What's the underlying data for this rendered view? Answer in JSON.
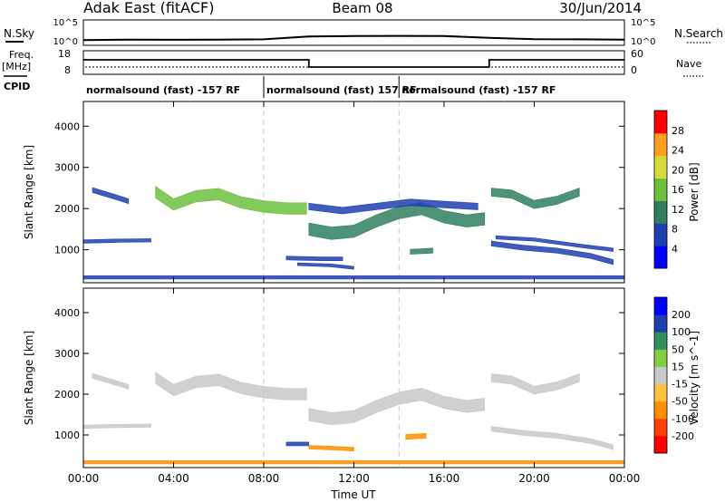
{
  "header": {
    "station": "Adak East (fitACF)",
    "beam": "Beam 08",
    "date": "30/Jun/2014"
  },
  "status_panel": {
    "nsky_label": "N.Sky",
    "nsky_ticks": [
      "10^5",
      "10^0"
    ],
    "nsearch_label": "N.Search",
    "nsearch_ticks": [
      "10^5",
      "10^0"
    ],
    "freq_label": "Freq.",
    "freq_unit": "[MHz]",
    "freq_ticks": [
      "18",
      "8"
    ],
    "nave_label": "Nave",
    "nave_ticks": [
      "60",
      "0"
    ],
    "cpid_label": "CPID",
    "freq_trace": [
      [
        0,
        14.5
      ],
      [
        10,
        14.5
      ],
      [
        10,
        10.5
      ],
      [
        18,
        10.5
      ],
      [
        18,
        14.5
      ],
      [
        24,
        14.5
      ]
    ],
    "nsky_trace": [
      [
        0,
        0.8
      ],
      [
        2,
        0.9
      ],
      [
        4,
        0.85
      ],
      [
        6,
        0.9
      ],
      [
        8,
        0.95
      ],
      [
        10,
        1.6
      ],
      [
        12,
        1.7
      ],
      [
        14,
        1.75
      ],
      [
        16,
        1.7
      ],
      [
        18,
        1.3
      ],
      [
        20,
        1.0
      ],
      [
        22,
        0.95
      ],
      [
        24,
        0.9
      ]
    ]
  },
  "cpid_segments": [
    {
      "start": 0,
      "end": 8,
      "label": "normalsound (fast) -157 RF"
    },
    {
      "start": 8,
      "end": 14,
      "label": "normalsound (fast) 157 RF"
    },
    {
      "start": 14,
      "end": 24,
      "label": "normalsound (fast) -157 RF"
    }
  ],
  "chart_data": [
    {
      "type": "heatmap",
      "panel": "power",
      "ylabel": "Slant Range [km]",
      "ylim": [
        200,
        4600
      ],
      "xlim": [
        0,
        24
      ],
      "yticks": [
        "1000",
        "2000",
        "3000",
        "4000"
      ],
      "colorbar_label": "Power [dB]",
      "colorbar_ticks": [
        "28",
        "24",
        "20",
        "16",
        "12",
        "8",
        "4"
      ],
      "colorbar_colors": [
        "#0000ff",
        "#1f3fb0",
        "#2f7f5f",
        "#6fbf3f",
        "#d8d83f",
        "#ff9f1f",
        "#ff0000"
      ],
      "bands": [
        {
          "name": "band-a",
          "points": [
            [
              0.4,
              2450
            ],
            [
              1.0,
              2350
            ],
            [
              1.6,
              2250
            ],
            [
              2.0,
              2180
            ]
          ],
          "width": 120,
          "value": 6
        },
        {
          "name": "band-b",
          "points": [
            [
              3.2,
              2400
            ],
            [
              4.0,
              2100
            ],
            [
              5.0,
              2300
            ],
            [
              6.0,
              2350
            ],
            [
              7.0,
              2150
            ],
            [
              8.0,
              2050
            ],
            [
              9.0,
              2000
            ],
            [
              9.9,
              2000
            ]
          ],
          "width": 280,
          "value": 14
        },
        {
          "name": "band-c",
          "points": [
            [
              0.0,
              1200
            ],
            [
              1.5,
              1220
            ],
            [
              3.0,
              1230
            ]
          ],
          "width": 80,
          "value": 6
        },
        {
          "name": "band-d",
          "points": [
            [
              10.0,
              1500
            ],
            [
              11.0,
              1400
            ],
            [
              12.0,
              1450
            ],
            [
              13.0,
              1700
            ],
            [
              14.0,
              1900
            ],
            [
              15.0,
              2000
            ],
            [
              16.0,
              1800
            ],
            [
              17.0,
              1700
            ],
            [
              17.8,
              1750
            ]
          ],
          "width": 300,
          "value": 12
        },
        {
          "name": "band-e",
          "points": [
            [
              10.0,
              2050
            ],
            [
              11.5,
              1950
            ],
            [
              13.0,
              2050
            ],
            [
              14.5,
              2150
            ],
            [
              16.0,
              2100
            ],
            [
              17.5,
              2050
            ]
          ],
          "width": 160,
          "value": 8
        },
        {
          "name": "band-f",
          "points": [
            [
              9.0,
              800
            ],
            [
              10.5,
              780
            ],
            [
              11.5,
              780
            ]
          ],
          "width": 90,
          "value": 8
        },
        {
          "name": "band-g",
          "points": [
            [
              9.5,
              650
            ],
            [
              11.0,
              620
            ],
            [
              12.0,
              560
            ]
          ],
          "width": 70,
          "value": 6
        },
        {
          "name": "band-h",
          "points": [
            [
              14.5,
              950
            ],
            [
              15.5,
              980
            ]
          ],
          "width": 120,
          "value": 10
        },
        {
          "name": "band-i",
          "points": [
            [
              18.1,
              2400
            ],
            [
              19.0,
              2350
            ],
            [
              20.0,
              2100
            ],
            [
              21.0,
              2200
            ],
            [
              22.0,
              2400
            ]
          ],
          "width": 200,
          "value": 12
        },
        {
          "name": "band-j",
          "points": [
            [
              18.1,
              1150
            ],
            [
              19.5,
              1050
            ],
            [
              21.0,
              980
            ],
            [
              22.5,
              850
            ],
            [
              23.5,
              700
            ]
          ],
          "width": 120,
          "value": 8
        },
        {
          "name": "band-k",
          "points": [
            [
              18.3,
              1300
            ],
            [
              20.0,
              1250
            ],
            [
              22.0,
              1100
            ],
            [
              23.5,
              1000
            ]
          ],
          "width": 80,
          "value": 6
        },
        {
          "name": "band-l",
          "points": [
            [
              0,
              330
            ],
            [
              6,
              330
            ],
            [
              12,
              330
            ],
            [
              18,
              330
            ],
            [
              24,
              330
            ]
          ],
          "width": 80,
          "value": 6
        }
      ]
    },
    {
      "type": "heatmap",
      "panel": "velocity",
      "ylabel": "Slant Range [km]",
      "xlabel": "Time UT",
      "ylim": [
        200,
        4600
      ],
      "xlim": [
        0,
        24
      ],
      "xticks": [
        "00:00",
        "04:00",
        "08:00",
        "12:00",
        "16:00",
        "20:00",
        "00:00"
      ],
      "yticks": [
        "1000",
        "2000",
        "3000",
        "4000"
      ],
      "colorbar_label": "Velocity [m s^-1]",
      "colorbar_ticks": [
        "200",
        "100",
        "50",
        "15",
        "-15",
        "-50",
        "-100",
        "-200"
      ],
      "colorbar_colors": [
        "#ff0000",
        "#ff3f00",
        "#ff8f00",
        "#ffbf3f",
        "#c8c8c8",
        "#7fcf3f",
        "#2f8f5f",
        "#1f3faf",
        "#0000ff"
      ],
      "bands": [
        {
          "name": "band-a",
          "points": [
            [
              0.4,
              2450
            ],
            [
              1.0,
              2350
            ],
            [
              1.6,
              2250
            ],
            [
              2.0,
              2180
            ]
          ],
          "width": 120,
          "value": 0
        },
        {
          "name": "band-b",
          "points": [
            [
              3.2,
              2400
            ],
            [
              4.0,
              2100
            ],
            [
              5.0,
              2300
            ],
            [
              6.0,
              2350
            ],
            [
              7.0,
              2150
            ],
            [
              8.0,
              2050
            ],
            [
              9.0,
              2000
            ],
            [
              9.9,
              2000
            ]
          ],
          "width": 280,
          "value": 0
        },
        {
          "name": "band-c",
          "points": [
            [
              0.0,
              1200
            ],
            [
              1.5,
              1220
            ],
            [
              3.0,
              1230
            ]
          ],
          "width": 80,
          "value": 0
        },
        {
          "name": "band-d",
          "points": [
            [
              10.0,
              1500
            ],
            [
              11.0,
              1400
            ],
            [
              12.0,
              1450
            ],
            [
              13.0,
              1700
            ],
            [
              14.0,
              1900
            ],
            [
              15.0,
              2000
            ],
            [
              16.0,
              1800
            ],
            [
              17.0,
              1700
            ],
            [
              17.8,
              1750
            ]
          ],
          "width": 300,
          "value": 0
        },
        {
          "name": "band-f",
          "points": [
            [
              9.0,
              780
            ],
            [
              10.0,
              780
            ]
          ],
          "width": 90,
          "value": 120
        },
        {
          "name": "band-g",
          "points": [
            [
              10.0,
              700
            ],
            [
              11.0,
              680
            ],
            [
              12.0,
              650
            ]
          ],
          "width": 90,
          "value": -40
        },
        {
          "name": "band-h",
          "points": [
            [
              14.3,
              950
            ],
            [
              15.2,
              980
            ]
          ],
          "width": 120,
          "value": -30
        },
        {
          "name": "band-i",
          "points": [
            [
              18.1,
              2400
            ],
            [
              19.0,
              2350
            ],
            [
              20.0,
              2100
            ],
            [
              21.0,
              2200
            ],
            [
              22.0,
              2400
            ]
          ],
          "width": 200,
          "value": 0
        },
        {
          "name": "band-j",
          "points": [
            [
              18.1,
              1150
            ],
            [
              19.5,
              1050
            ],
            [
              21.0,
              980
            ],
            [
              22.5,
              850
            ],
            [
              23.5,
              700
            ]
          ],
          "width": 120,
          "value": 0
        },
        {
          "name": "band-l",
          "points": [
            [
              0,
              330
            ],
            [
              6,
              330
            ],
            [
              12,
              330
            ],
            [
              18,
              330
            ],
            [
              24,
              330
            ]
          ],
          "width": 80,
          "value": -30
        }
      ]
    }
  ]
}
